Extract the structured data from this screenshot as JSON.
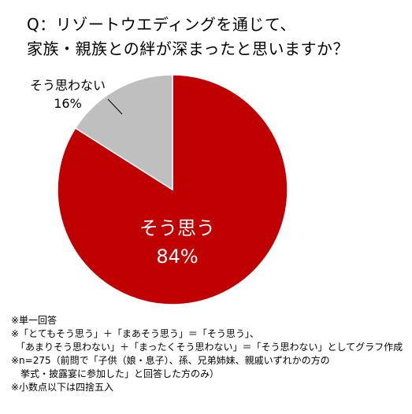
{
  "question": {
    "line1": "Q：リゾートウエディングを通じて、",
    "line2": "家族・親族との絆が深まったと思いますか？"
  },
  "colors": {
    "agree": "#c00000",
    "disagree": "#bfbfbf",
    "divider": "#ffffff",
    "pointer": "#000000"
  },
  "chart_data": {
    "type": "pie",
    "title": "Q：リゾートウエディングを通じて、家族・親族との絆が深まったと思いますか？",
    "categories": [
      "そう思う",
      "そう思わない"
    ],
    "values": [
      84,
      16
    ],
    "unit": "%",
    "data_labels": [
      {
        "name": "そう思う",
        "percent": "84%"
      },
      {
        "name": "そう思わない",
        "percent": "16%"
      }
    ]
  },
  "notes": [
    "※単一回答",
    "※「とてもそう思う」＋「まあそう思う」＝「そう思う」、",
    "　「あまりそう思わない」＋「まったくそう思わない」＝「そう思わない」としてグラフ作成",
    "※n=275（前問で「子供（娘・息子）、孫、兄弟姉妹、親戚いずれかの方の",
    "　挙式・披露宴に参加した」と回答した方のみ）",
    "※小数点以下は四捨五入"
  ]
}
